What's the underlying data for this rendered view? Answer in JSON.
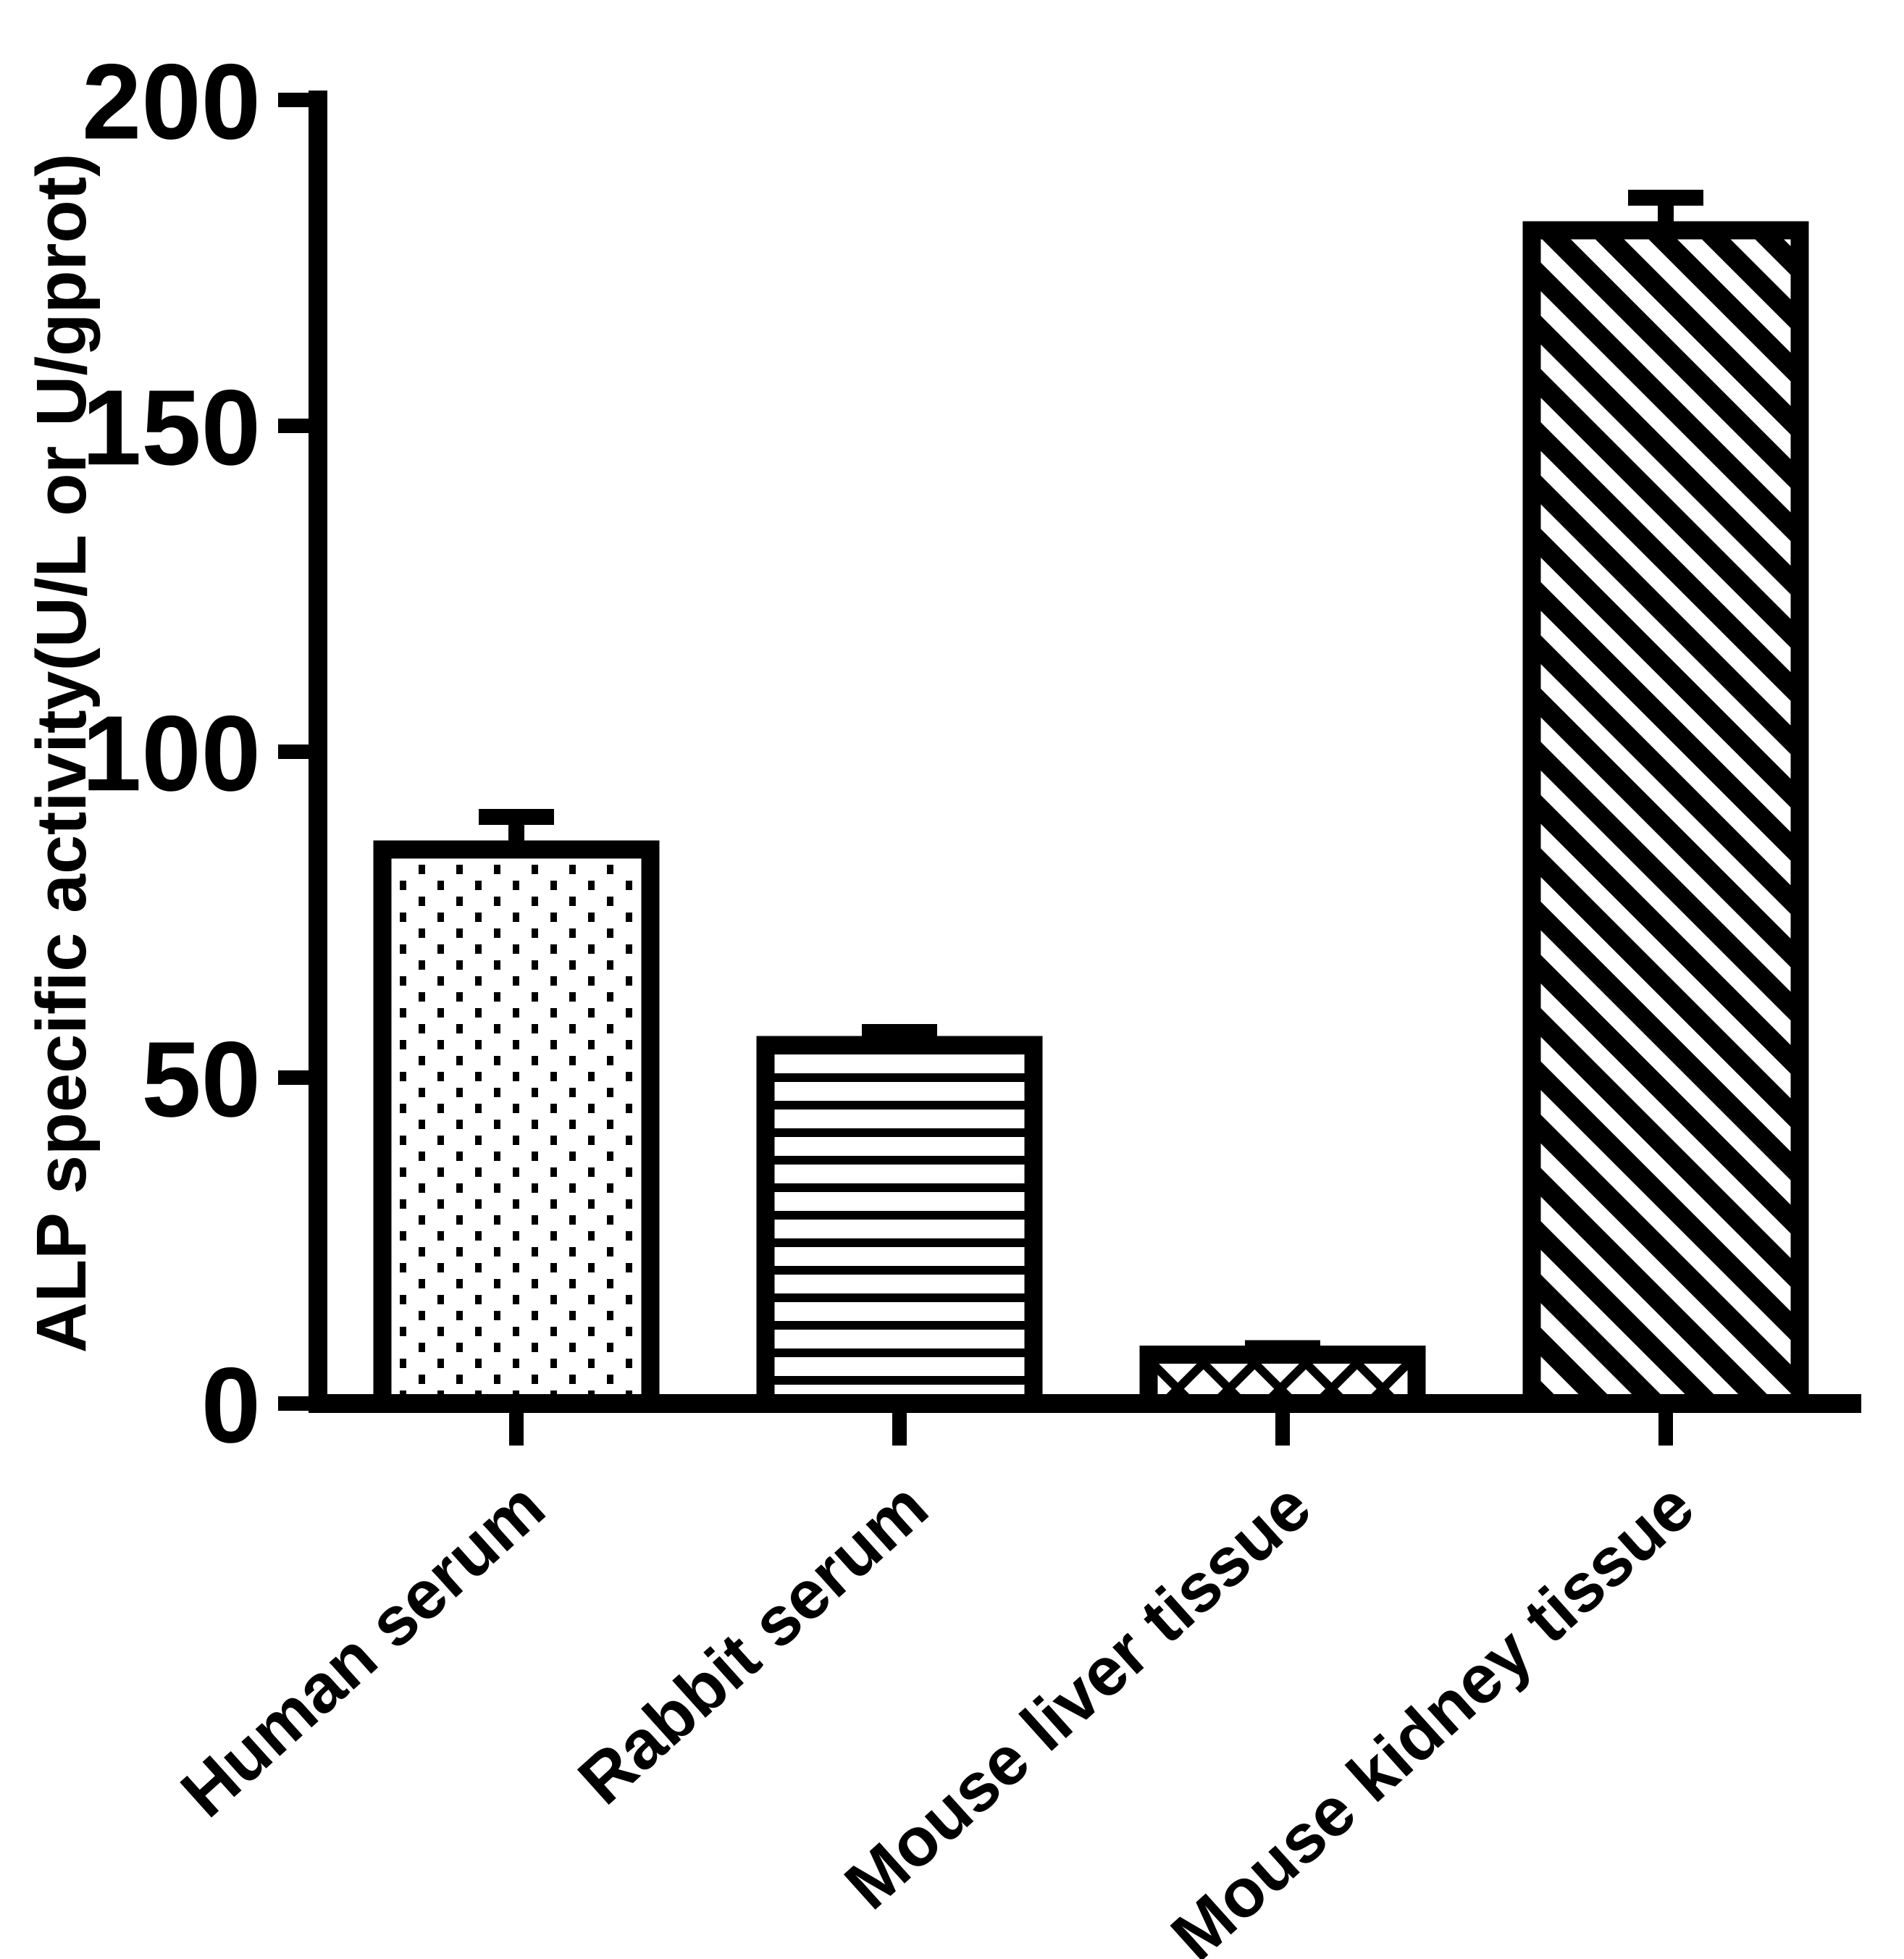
{
  "figure": {
    "background": "#ffffff",
    "foreground": "#000000"
  },
  "chart_data": {
    "type": "bar",
    "title": "",
    "xlabel": "",
    "ylabel": "ALP specific activity(U/L or U/gprot)",
    "categories": [
      "Human serum",
      "Rabbit serum",
      "Mouse liver tissue",
      "Mouse kidney tissue"
    ],
    "values": [
      85,
      55,
      7.5,
      180
    ],
    "errors": [
      5,
      2,
      1,
      5
    ],
    "error_style": "upper-cap",
    "yticks": [
      0,
      50,
      100,
      150,
      200
    ],
    "ytick_labels": [
      "0",
      "50",
      "100",
      "150",
      "200"
    ],
    "ylim": [
      0,
      200
    ],
    "grid": false,
    "legend_position": "none",
    "bar_fill_background": "#ffffff",
    "bar_outline_color": "#000000",
    "bar_patterns": [
      "dots",
      "horizontal-lines",
      "diagonal-crosshatch",
      "diagonal-stripes"
    ],
    "x_label_rotation_deg": -42
  }
}
